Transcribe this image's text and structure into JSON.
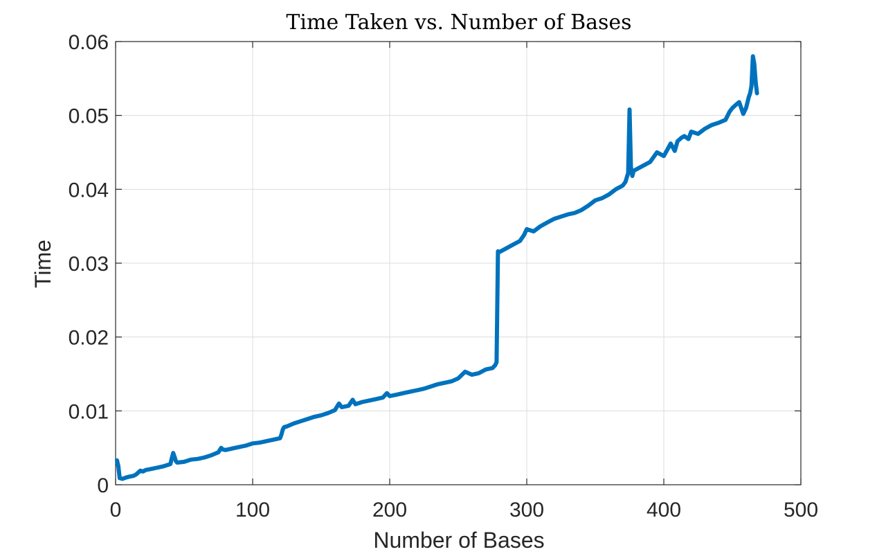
{
  "chart_data": {
    "type": "line",
    "title": "Time Taken vs. Number of Bases",
    "xlabel": "Number of Bases",
    "ylabel": "Time",
    "xlim": [
      0,
      500
    ],
    "ylim": [
      0,
      0.06
    ],
    "xticks": [
      0,
      100,
      200,
      300,
      400,
      500
    ],
    "xtick_labels": [
      "0",
      "100",
      "200",
      "300",
      "400",
      "500"
    ],
    "yticks": [
      0,
      0.01,
      0.02,
      0.03,
      0.04,
      0.05,
      0.06
    ],
    "ytick_labels": [
      "0",
      "0.01",
      "0.02",
      "0.03",
      "0.04",
      "0.05",
      "0.06"
    ],
    "grid": true,
    "series": [
      {
        "color": "#0072bd",
        "x": [
          1,
          2,
          3,
          5,
          8,
          10,
          13,
          15,
          18,
          20,
          22,
          25,
          30,
          35,
          40,
          41,
          42,
          43,
          44,
          45,
          50,
          55,
          60,
          65,
          70,
          75,
          77,
          78,
          80,
          85,
          90,
          95,
          100,
          105,
          110,
          115,
          120,
          121,
          122,
          123,
          125,
          130,
          135,
          140,
          145,
          150,
          155,
          160,
          163,
          165,
          170,
          173,
          175,
          180,
          185,
          190,
          195,
          198,
          200,
          205,
          210,
          215,
          220,
          225,
          230,
          235,
          240,
          245,
          250,
          255,
          260,
          265,
          270,
          275,
          277,
          278,
          279,
          280,
          285,
          290,
          295,
          298,
          300,
          305,
          310,
          315,
          320,
          325,
          330,
          335,
          340,
          345,
          350,
          355,
          360,
          365,
          370,
          372,
          373,
          374,
          375,
          376,
          377,
          378,
          380,
          385,
          390,
          395,
          400,
          403,
          405,
          408,
          410,
          413,
          415,
          418,
          420,
          425,
          430,
          435,
          440,
          445,
          448,
          450,
          453,
          455,
          458,
          460,
          462,
          463,
          464,
          465,
          466,
          467,
          468
        ],
        "y": [
          0.0033,
          0.0025,
          0.0009,
          0.0008,
          0.001,
          0.0011,
          0.0012,
          0.0014,
          0.0019,
          0.0018,
          0.002,
          0.0021,
          0.0023,
          0.0025,
          0.0028,
          0.0036,
          0.0043,
          0.0038,
          0.0032,
          0.003,
          0.0031,
          0.0034,
          0.0035,
          0.0037,
          0.004,
          0.0044,
          0.005,
          0.0048,
          0.0047,
          0.0049,
          0.0051,
          0.0053,
          0.0056,
          0.0057,
          0.0059,
          0.0061,
          0.0063,
          0.0068,
          0.0075,
          0.0078,
          0.0079,
          0.0083,
          0.0086,
          0.0089,
          0.0092,
          0.0094,
          0.0097,
          0.0101,
          0.011,
          0.0105,
          0.0107,
          0.0115,
          0.0109,
          0.0112,
          0.0114,
          0.0116,
          0.0118,
          0.0124,
          0.012,
          0.0122,
          0.0124,
          0.0126,
          0.0128,
          0.013,
          0.0133,
          0.0136,
          0.0138,
          0.014,
          0.0144,
          0.0153,
          0.0149,
          0.0151,
          0.0156,
          0.0158,
          0.0162,
          0.0166,
          0.0316,
          0.0315,
          0.032,
          0.0325,
          0.033,
          0.0338,
          0.0346,
          0.0343,
          0.035,
          0.0355,
          0.036,
          0.0363,
          0.0366,
          0.0368,
          0.0372,
          0.0378,
          0.0385,
          0.0388,
          0.0393,
          0.04,
          0.0405,
          0.041,
          0.0416,
          0.0422,
          0.0508,
          0.043,
          0.0418,
          0.0425,
          0.0427,
          0.0432,
          0.0437,
          0.045,
          0.0445,
          0.0455,
          0.0462,
          0.0452,
          0.0465,
          0.047,
          0.0472,
          0.0468,
          0.0478,
          0.0475,
          0.0482,
          0.0487,
          0.049,
          0.0494,
          0.0505,
          0.051,
          0.0515,
          0.0518,
          0.0502,
          0.051,
          0.0525,
          0.053,
          0.054,
          0.058,
          0.057,
          0.0545,
          0.053
        ]
      }
    ]
  }
}
